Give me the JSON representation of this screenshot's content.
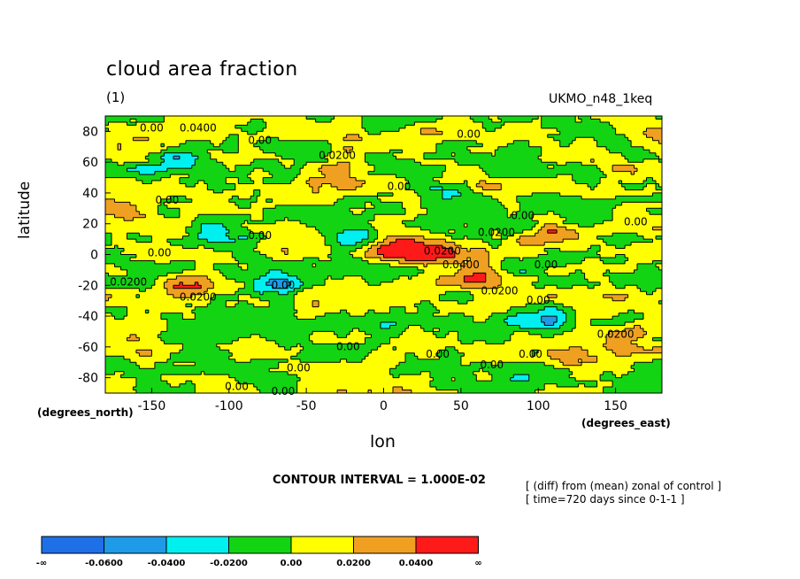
{
  "chart_data": {
    "type": "heatmap",
    "title": "cloud area fraction",
    "units": "(1)",
    "model": "UKMO_n48_1keq",
    "xlabel": "lon",
    "ylabel": "latitude",
    "x_units": "(degrees_east)",
    "y_units": "(degrees_north)",
    "xlim": [
      -180,
      180
    ],
    "ylim": [
      -90,
      90
    ],
    "x_ticks": [
      -150,
      -100,
      -50,
      0,
      50,
      100,
      150
    ],
    "y_ticks": [
      80,
      60,
      40,
      20,
      0,
      -20,
      -40,
      -60,
      -80
    ],
    "contour_interval_text": "CONTOUR INTERVAL = 1.000E-02",
    "notes": [
      "[ (diff) from (mean) zonal of control ]",
      "[ time=720 days since 0-1-1 ]"
    ],
    "colorbar": {
      "colors": [
        "#1f6fe6",
        "#1e9ae6",
        "#00f0f0",
        "#13d413",
        "#ffff00",
        "#f0a020",
        "#ff1a1a"
      ],
      "labels": [
        "-∞",
        "-0.0600",
        "-0.0400",
        "-0.0200",
        "0.00",
        "0.0200",
        "0.0400",
        "∞"
      ],
      "boundaries": [
        -0.06,
        -0.04,
        -0.02,
        0.0,
        0.02,
        0.04
      ]
    },
    "features": [
      {
        "lon": 15,
        "lat": 2,
        "value": 0.055
      },
      {
        "lon": 60,
        "lat": -12,
        "value": 0.045
      },
      {
        "lon": -30,
        "lat": 55,
        "value": 0.04
      },
      {
        "lon": -170,
        "lat": 27,
        "value": 0.045
      },
      {
        "lon": -125,
        "lat": -20,
        "value": 0.045
      },
      {
        "lon": 110,
        "lat": 12,
        "value": 0.04
      },
      {
        "lon": 150,
        "lat": 60,
        "value": 0.03
      },
      {
        "lon": -20,
        "lat": 12,
        "value": -0.035
      },
      {
        "lon": 40,
        "lat": -1,
        "value": 0.035
      },
      {
        "lon": 100,
        "lat": -42,
        "value": -0.03
      },
      {
        "lon": -135,
        "lat": 60,
        "value": -0.03
      },
      {
        "lon": -70,
        "lat": -20,
        "value": -0.035
      },
      {
        "lon": -110,
        "lat": 10,
        "value": -0.03
      },
      {
        "lon": 40,
        "lat": 40,
        "value": -0.03
      },
      {
        "lon": -50,
        "lat": -75,
        "value": 0.02
      },
      {
        "lon": 120,
        "lat": -65,
        "value": 0.025
      },
      {
        "lon": 160,
        "lat": -50,
        "value": 0.03
      }
    ],
    "contour_labels": [
      {
        "text": "0.00",
        "lon": -150,
        "lat": 82
      },
      {
        "text": "0.0400",
        "lon": -120,
        "lat": 82
      },
      {
        "text": "0.00",
        "lon": -80,
        "lat": 74
      },
      {
        "text": "0.0200",
        "lon": -30,
        "lat": 64
      },
      {
        "text": "0.00",
        "lon": 55,
        "lat": 78
      },
      {
        "text": "0.00",
        "lon": 10,
        "lat": 44
      },
      {
        "text": "0.00",
        "lon": -140,
        "lat": 35
      },
      {
        "text": "0.00",
        "lon": -80,
        "lat": 12
      },
      {
        "text": "0.00",
        "lon": 90,
        "lat": 25
      },
      {
        "text": "0.0200",
        "lon": 73,
        "lat": 14
      },
      {
        "text": "0.00",
        "lon": 163,
        "lat": 21
      },
      {
        "text": "0.00",
        "lon": -145,
        "lat": 1
      },
      {
        "text": "0.0200",
        "lon": 38,
        "lat": 2
      },
      {
        "text": "0.0400",
        "lon": 50,
        "lat": -7
      },
      {
        "text": "0.00",
        "lon": 105,
        "lat": -7
      },
      {
        "text": "0.0200",
        "lon": -165,
        "lat": -18
      },
      {
        "text": "0.00",
        "lon": -65,
        "lat": -20
      },
      {
        "text": "0.0200",
        "lon": -120,
        "lat": -28
      },
      {
        "text": "0.0200",
        "lon": 75,
        "lat": -24
      },
      {
        "text": "0.00",
        "lon": 100,
        "lat": -30
      },
      {
        "text": "0.0200",
        "lon": 150,
        "lat": -52
      },
      {
        "text": "0.00",
        "lon": -23,
        "lat": -60
      },
      {
        "text": "0.00",
        "lon": 35,
        "lat": -65
      },
      {
        "text": "0.00",
        "lon": -55,
        "lat": -74
      },
      {
        "text": "0.00",
        "lon": 70,
        "lat": -72
      },
      {
        "text": "0.00",
        "lon": 95,
        "lat": -65
      },
      {
        "text": "0.00",
        "lon": -95,
        "lat": -86
      },
      {
        "text": "0.00",
        "lon": -65,
        "lat": -89
      }
    ]
  }
}
